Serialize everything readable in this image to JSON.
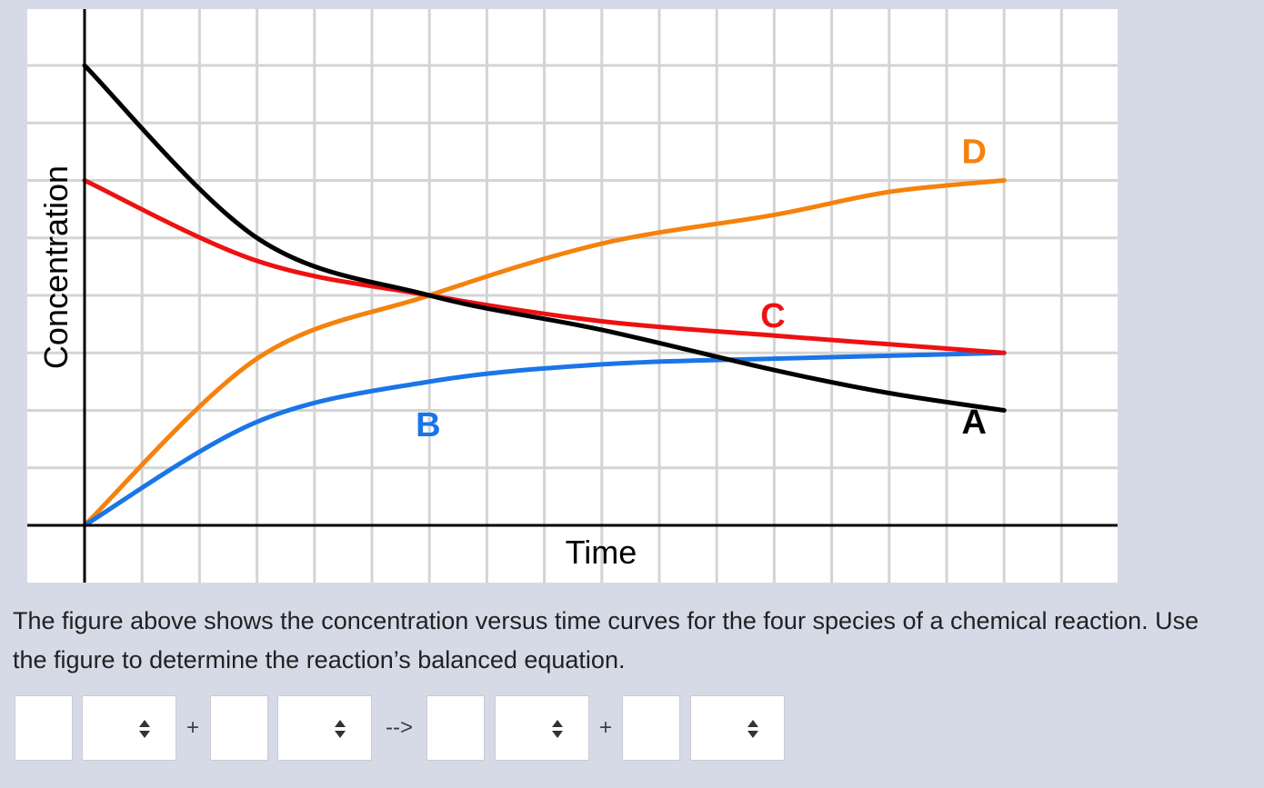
{
  "chart_data": {
    "type": "line",
    "xlabel": "Time",
    "ylabel": "Concentration",
    "xlim": [
      0,
      18
    ],
    "ylim": [
      0,
      8
    ],
    "grid": true,
    "series": [
      {
        "name": "A",
        "color": "#000000",
        "x": [
          0,
          3,
          6,
          9,
          12,
          14,
          16
        ],
        "y": [
          8.0,
          5.0,
          4.0,
          3.4,
          2.7,
          2.3,
          2.0
        ]
      },
      {
        "name": "B",
        "color": "#1a75e8",
        "x": [
          0,
          3,
          6,
          9,
          12,
          14,
          16
        ],
        "y": [
          0,
          1.8,
          2.5,
          2.8,
          2.9,
          2.95,
          3.0
        ]
      },
      {
        "name": "C",
        "color": "#ee1111",
        "x": [
          0,
          3,
          6,
          9,
          12,
          14,
          16
        ],
        "y": [
          6.0,
          4.6,
          4.0,
          3.55,
          3.3,
          3.15,
          3.0
        ]
      },
      {
        "name": "D",
        "color": "#f5820d",
        "x": [
          0,
          3,
          6,
          9,
          12,
          14,
          16
        ],
        "y": [
          0,
          2.9,
          4.0,
          4.9,
          5.4,
          5.8,
          6.0
        ]
      }
    ],
    "annotations": [
      "A",
      "B",
      "C",
      "D"
    ]
  },
  "question": {
    "text": "The figure above shows the concentration versus time curves for the four species of a chemical reaction. Use the figure to determine the reaction’s balanced equation."
  },
  "equation": {
    "coef_1": "",
    "species_1": "",
    "plus_1": "+",
    "coef_2": "",
    "species_2": "",
    "arrow": "-->",
    "coef_3": "",
    "species_3": "",
    "plus_2": "+",
    "coef_4": "",
    "species_4": ""
  },
  "colors": {
    "page_background": "#d6dae6",
    "grid_line": "#d4d4d4",
    "axis": "#000000"
  },
  "icons": {
    "dropdown": "up-down-caret-icon"
  }
}
